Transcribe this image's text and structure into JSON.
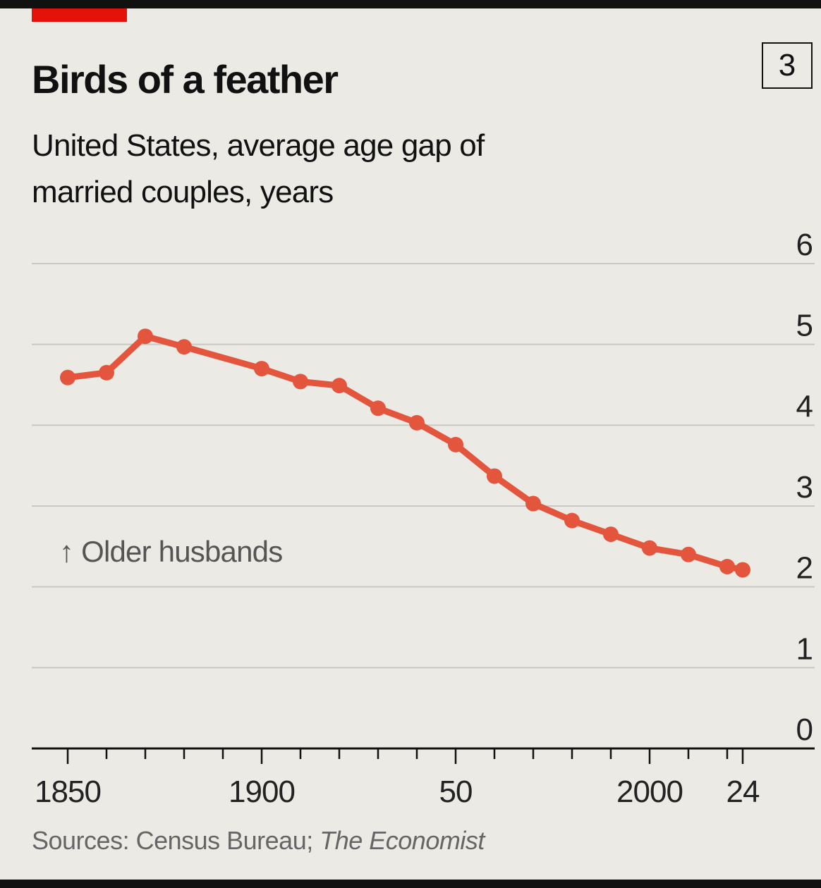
{
  "header": {
    "title": "Birds of a feather",
    "chart_number": "3",
    "subtitle": "United States, average age gap of married couples, years"
  },
  "footer": {
    "source_prefix": "Sources: Census Bureau; ",
    "source_italic": "The Economist"
  },
  "colors": {
    "line": "#e3553d",
    "accent": "#e3120b",
    "grid": "#c9c8c2",
    "background": "#ebeae4"
  },
  "chart_data": {
    "type": "line",
    "title": "Birds of a feather",
    "subtitle": "United States, average age gap of married couples, years",
    "xlabel": "",
    "ylabel": "years",
    "annotation": "↑ Older husbands",
    "ylim": [
      0,
      6
    ],
    "xlim": [
      1841,
      2029
    ],
    "yticks": [
      0,
      1,
      2,
      3,
      4,
      5,
      6
    ],
    "ytick_labels": [
      "0",
      "1",
      "2",
      "3",
      "4",
      "5",
      "6"
    ],
    "xticks_major": [
      1850,
      1900,
      1950,
      2000,
      2024
    ],
    "xtick_labels": [
      "1850",
      "1900",
      "50",
      "2000",
      "24"
    ],
    "xticks_minor": [
      1860,
      1870,
      1880,
      1890,
      1910,
      1920,
      1930,
      1940,
      1960,
      1970,
      1980,
      1990,
      2010,
      2020
    ],
    "grid": true,
    "series": [
      {
        "name": "Average age gap",
        "x": [
          1850,
          1860,
          1870,
          1880,
          1900,
          1910,
          1920,
          1930,
          1940,
          1950,
          1960,
          1970,
          1980,
          1990,
          2000,
          2010,
          2020,
          2024
        ],
        "values": [
          4.59,
          4.65,
          5.1,
          4.97,
          4.7,
          4.54,
          4.49,
          4.21,
          4.03,
          3.76,
          3.37,
          3.03,
          2.82,
          2.65,
          2.48,
          2.4,
          2.25,
          2.21
        ]
      }
    ]
  }
}
